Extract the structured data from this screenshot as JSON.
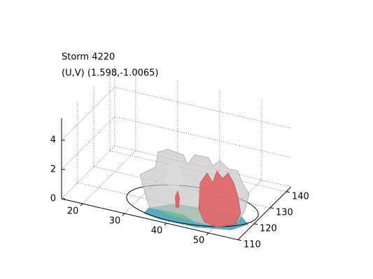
{
  "chart_data": {
    "type": "isosurface3d",
    "title": "Storm 4220",
    "subtitle": "(U,V) (1.598,-1.0065)",
    "xlim": [
      15,
      57
    ],
    "ylim": [
      110,
      143
    ],
    "zlim": [
      0,
      5.5
    ],
    "xticks": [
      20,
      30,
      40,
      50
    ],
    "yticks": [
      110,
      120,
      130,
      140
    ],
    "zticks": [
      0,
      2,
      4
    ],
    "grid": true
  }
}
